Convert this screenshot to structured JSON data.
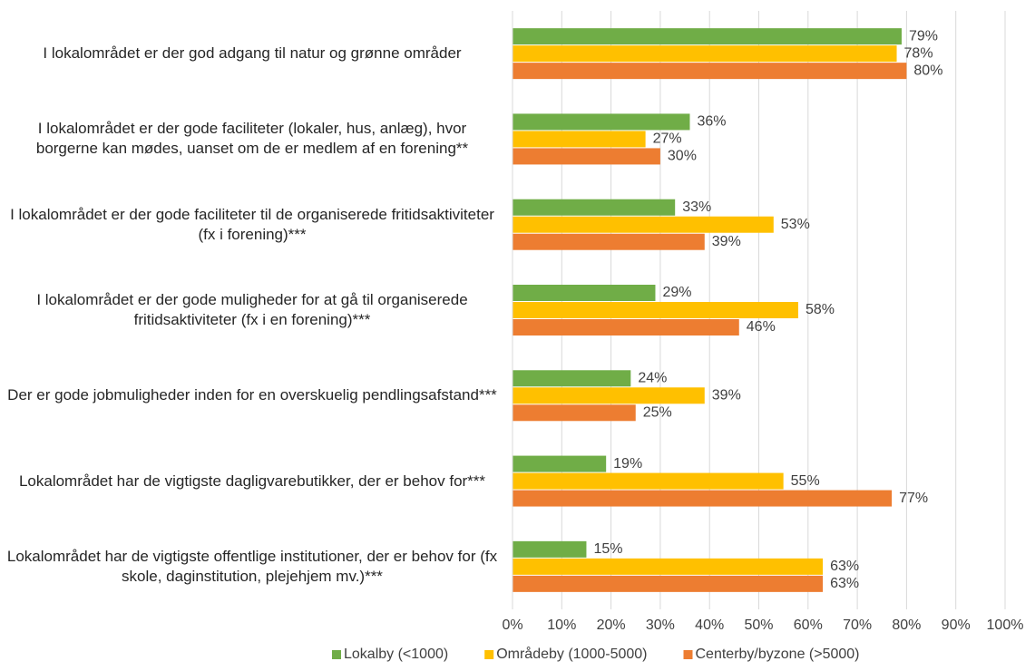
{
  "chart_data": {
    "type": "hbar",
    "categories": [
      "I lokalområdet er der god adgang til natur og grønne områder",
      "I lokalområdet er der gode faciliteter (lokaler, hus, anlæg), hvor borgerne kan mødes, uanset om de er medlem af en forening**",
      "I lokalområdet er der gode faciliteter til de organiserede fritidsaktiviteter (fx i forening)***",
      "I lokalområdet er der gode muligheder for at gå til organiserede fritidsaktiviteter (fx i en forening)***",
      "Der er gode jobmuligheder inden for en overskuelig pendlingsafstand***",
      "Lokalområdet har de vigtigste dagligvarebutikker, der er behov for***",
      "Lokalområdet har de vigtigste offentlige institutioner, der er behov for (fx skole, daginstitution, plejehjem mv.)***"
    ],
    "series": [
      {
        "name": "Lokalby (<1000)",
        "color": "#70ad47",
        "values": [
          79,
          36,
          33,
          29,
          24,
          19,
          15
        ],
        "value_labels": [
          "79%",
          "36%",
          "33%",
          "29%",
          "24%",
          "19%",
          "15%"
        ]
      },
      {
        "name": "Områdeby (1000-5000)",
        "color": "#ffc000",
        "values": [
          78,
          27,
          53,
          58,
          39,
          55,
          63
        ],
        "value_labels": [
          "78%",
          "27%",
          "53%",
          "58%",
          "39%",
          "55%",
          "63%"
        ]
      },
      {
        "name": "Centerby/byzone (>5000)",
        "color": "#ed7d31",
        "values": [
          80,
          30,
          39,
          46,
          25,
          77,
          63
        ],
        "value_labels": [
          "80%",
          "30%",
          "39%",
          "46%",
          "25%",
          "77%",
          "63%"
        ]
      }
    ],
    "xlim": [
      0,
      100
    ],
    "xticks": [
      {
        "value": 0,
        "label": "0%"
      },
      {
        "value": 10,
        "label": "10%"
      },
      {
        "value": 20,
        "label": "20%"
      },
      {
        "value": 30,
        "label": "30%"
      },
      {
        "value": 40,
        "label": "40%"
      },
      {
        "value": 50,
        "label": "50%"
      },
      {
        "value": 60,
        "label": "60%"
      },
      {
        "value": 70,
        "label": "70%"
      },
      {
        "value": 80,
        "label": "80%"
      },
      {
        "value": 90,
        "label": "90%"
      },
      {
        "value": 100,
        "label": "100%"
      }
    ],
    "grid": true,
    "legend": "bottom"
  }
}
